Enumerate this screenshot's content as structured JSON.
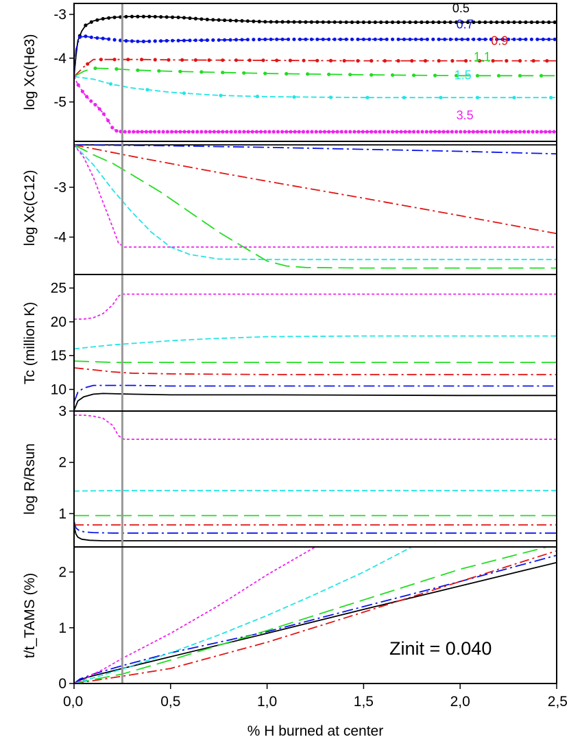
{
  "chart_data": {
    "type": "line",
    "xlabel": "% H burned at center",
    "xlim": [
      0,
      2.5
    ],
    "x_ticks": [
      "0,0",
      "0,5",
      "1,0",
      "1,5",
      "2,0",
      "2,5"
    ],
    "x_tick_values": [
      0,
      0.5,
      1,
      1.5,
      2,
      2.5
    ],
    "vertical_line_x": 0.25,
    "annotation": "Zinit = 0.040",
    "masses": [
      "0.5",
      "0.7",
      "0.9",
      "1.1",
      "1.5",
      "3.5"
    ],
    "colors": {
      "0.5": "#000000",
      "0.7": "#0a14e6",
      "0.9": "#e11414",
      "1.1": "#22dd22",
      "1.5": "#22e5e5",
      "3.5": "#ee22ee",
      "refline": "#999999"
    },
    "dash": {
      "0.5": "",
      "0.7": "16 5 3 5",
      "0.9": "14 5 3 5",
      "1.1": "22 9",
      "1.5": "8 4",
      "3.5": "4 3"
    },
    "panels": [
      {
        "id": "he3",
        "ylabel": "log Xc(He3)",
        "ylim": [
          -5.9,
          -2.75
        ],
        "y_ticks": [
          -3,
          -4,
          -5
        ],
        "y_tick_labels": [
          "-3",
          "-4",
          "-5"
        ],
        "series_labels": [
          {
            "mass": "0.5",
            "text": "0.5"
          },
          {
            "mass": "0.7",
            "text": "0.7"
          },
          {
            "mass": "0.9",
            "text": "0.9"
          },
          {
            "mass": "1.1",
            "text": "1.1"
          },
          {
            "mass": "1.5",
            "text": "1.5"
          },
          {
            "mass": "3.5",
            "text": "3.5"
          }
        ],
        "label_positions": {
          "0.5": [
            1.96,
            -2.95
          ],
          "0.7": [
            1.98,
            -3.32
          ],
          "0.9": [
            2.16,
            -3.7
          ],
          "1.1": [
            2.07,
            -4.07
          ],
          "1.5": [
            1.97,
            -4.48
          ],
          "3.5": [
            1.98,
            -5.4
          ]
        },
        "series": [
          {
            "mass": "0.5",
            "markers": 0.03,
            "x": [
              0,
              0.01,
              0.02,
              0.04,
              0.06,
              0.1,
              0.15,
              0.2,
              0.28,
              0.4,
              0.55,
              0.7,
              1.0,
              1.5,
              2.0,
              2.5
            ],
            "y": [
              -4.42,
              -3.95,
              -3.6,
              -3.38,
              -3.25,
              -3.15,
              -3.1,
              -3.07,
              -3.05,
              -3.05,
              -3.07,
              -3.12,
              -3.17,
              -3.18,
              -3.18,
              -3.18
            ]
          },
          {
            "mass": "0.7",
            "markers": 0.03,
            "x": [
              0,
              0.01,
              0.03,
              0.06,
              0.1,
              0.15,
              0.25,
              0.35,
              0.5,
              1.0,
              1.5,
              2.0,
              2.5
            ],
            "y": [
              -4.42,
              -3.8,
              -3.52,
              -3.5,
              -3.53,
              -3.55,
              -3.6,
              -3.62,
              -3.6,
              -3.57,
              -3.57,
              -3.57,
              -3.57
            ]
          },
          {
            "mass": "0.9",
            "markers": 0.07,
            "x": [
              0,
              0.05,
              0.1,
              0.2,
              0.35,
              0.5,
              1.0,
              1.5,
              2.0,
              2.5
            ],
            "y": [
              -4.42,
              -4.2,
              -4.03,
              -4.03,
              -4.03,
              -4.04,
              -4.05,
              -4.06,
              -4.06,
              -4.06
            ]
          },
          {
            "mass": "1.1",
            "markers": 0.11,
            "x": [
              0,
              0.05,
              0.1,
              0.2,
              0.3,
              0.5,
              1.0,
              1.5,
              2.0,
              2.5
            ],
            "y": [
              -4.42,
              -4.3,
              -4.23,
              -4.24,
              -4.27,
              -4.3,
              -4.35,
              -4.38,
              -4.4,
              -4.4
            ]
          },
          {
            "mass": "1.5",
            "markers": 0.19,
            "x": [
              0,
              0.1,
              0.2,
              0.3,
              0.5,
              0.75,
              1.0,
              1.5,
              2.0,
              2.5
            ],
            "y": [
              -4.42,
              -4.48,
              -4.6,
              -4.68,
              -4.78,
              -4.85,
              -4.88,
              -4.9,
              -4.9,
              -4.9
            ]
          },
          {
            "mass": "3.5",
            "markers": 0.022,
            "x": [
              0,
              0.02,
              0.05,
              0.08,
              0.12,
              0.15,
              0.18,
              0.2,
              0.22,
              0.25,
              0.28,
              0.5,
              1.0,
              2.5
            ],
            "y": [
              -4.42,
              -4.6,
              -4.8,
              -4.95,
              -5.1,
              -5.25,
              -5.45,
              -5.6,
              -5.66,
              -5.68,
              -5.68,
              -5.68,
              -5.68,
              -5.68
            ]
          }
        ]
      },
      {
        "id": "c12",
        "ylabel": "log Xc(C12)",
        "ylim": [
          -4.75,
          -2.08
        ],
        "y_ticks": [
          -3,
          -4
        ],
        "y_tick_labels": [
          "-3",
          "-4"
        ],
        "series": [
          {
            "mass": "0.5",
            "x": [
              0,
              0.5,
              1.0,
              1.5,
              2.0,
              2.5
            ],
            "y": [
              -2.15,
              -2.15,
              -2.15,
              -2.15,
              -2.15,
              -2.15
            ]
          },
          {
            "mass": "0.7",
            "x": [
              0,
              0.5,
              1.0,
              1.5,
              2.0,
              2.5
            ],
            "y": [
              -2.15,
              -2.17,
              -2.2,
              -2.24,
              -2.28,
              -2.33
            ]
          },
          {
            "mass": "0.9",
            "x": [
              0,
              0.3,
              0.7,
              1.0,
              1.5,
              2.0,
              2.5
            ],
            "y": [
              -2.15,
              -2.38,
              -2.67,
              -2.88,
              -3.22,
              -3.57,
              -3.93
            ]
          },
          {
            "mass": "1.1",
            "x": [
              0,
              0.1,
              0.2,
              0.3,
              0.45,
              0.6,
              0.75,
              0.9,
              1.0,
              1.1,
              1.2,
              1.5,
              2.0,
              2.5
            ],
            "y": [
              -2.15,
              -2.35,
              -2.52,
              -2.75,
              -3.1,
              -3.5,
              -3.9,
              -4.25,
              -4.48,
              -4.58,
              -4.61,
              -4.62,
              -4.62,
              -4.62
            ]
          },
          {
            "mass": "1.5",
            "x": [
              0,
              0.1,
              0.2,
              0.3,
              0.4,
              0.5,
              0.6,
              0.75,
              1.0,
              2.5
            ],
            "y": [
              -2.15,
              -2.55,
              -3.05,
              -3.5,
              -3.9,
              -4.2,
              -4.35,
              -4.44,
              -4.45,
              -4.45
            ]
          },
          {
            "mass": "3.5",
            "x": [
              0,
              0.05,
              0.1,
              0.15,
              0.2,
              0.23,
              0.26,
              0.3,
              0.5,
              2.5
            ],
            "y": [
              -2.15,
              -2.4,
              -2.8,
              -3.3,
              -3.8,
              -4.12,
              -4.2,
              -4.2,
              -4.2,
              -4.2
            ]
          }
        ]
      },
      {
        "id": "tc",
        "ylabel": "Tc (million K)",
        "ylim": [
          6.8,
          27.0
        ],
        "y_ticks": [
          10,
          15,
          20,
          25
        ],
        "y_tick_labels": [
          "10",
          "15",
          "20",
          "25"
        ],
        "series": [
          {
            "mass": "0.5",
            "x": [
              0,
              0.02,
              0.05,
              0.1,
              0.15,
              0.3,
              0.5,
              1.0,
              2.0,
              2.5
            ],
            "y": [
              6.9,
              8.3,
              8.9,
              9.3,
              9.4,
              9.3,
              9.2,
              9.2,
              9.1,
              9.1
            ]
          },
          {
            "mass": "0.7",
            "x": [
              0,
              0.02,
              0.05,
              0.1,
              0.15,
              0.3,
              0.5,
              1.0,
              2.0,
              2.5
            ],
            "y": [
              8.1,
              9.6,
              10.2,
              10.6,
              10.6,
              10.6,
              10.5,
              10.5,
              10.5,
              10.5
            ]
          },
          {
            "mass": "0.9",
            "x": [
              0,
              0.1,
              0.2,
              0.3,
              0.5,
              1.0,
              2.0,
              2.5
            ],
            "y": [
              13.2,
              12.9,
              12.6,
              12.4,
              12.3,
              12.2,
              12.2,
              12.2
            ]
          },
          {
            "mass": "1.1",
            "x": [
              0,
              0.1,
              0.2,
              0.3,
              0.5,
              1.0,
              2.0,
              2.5
            ],
            "y": [
              14.2,
              14.1,
              14.0,
              14.0,
              14.0,
              14.0,
              14.0,
              14.0
            ]
          },
          {
            "mass": "1.5",
            "x": [
              0,
              0.1,
              0.2,
              0.3,
              0.5,
              0.7,
              1.0,
              1.5,
              2.0,
              2.5
            ],
            "y": [
              16.0,
              16.3,
              16.6,
              16.8,
              17.2,
              17.5,
              17.8,
              17.9,
              17.9,
              17.9
            ]
          },
          {
            "mass": "3.5",
            "x": [
              0,
              0.05,
              0.1,
              0.15,
              0.2,
              0.23,
              0.25,
              0.28,
              0.5,
              1.0,
              2.5
            ],
            "y": [
              20.4,
              20.4,
              20.6,
              21.2,
              22.5,
              23.8,
              24.1,
              24.1,
              24.1,
              24.1,
              24.1
            ]
          }
        ]
      },
      {
        "id": "r",
        "ylabel": "log R/Rsun",
        "ylim": [
          0.35,
          3.0
        ],
        "y_ticks": [
          1,
          2,
          3
        ],
        "y_tick_labels": [
          "1",
          "2",
          "3"
        ],
        "series": [
          {
            "mass": "0.5",
            "x": [
              0,
              0.01,
              0.02,
              0.04,
              0.08,
              0.15,
              0.3,
              1.0,
              2.5
            ],
            "y": [
              0.75,
              0.6,
              0.54,
              0.5,
              0.48,
              0.47,
              0.47,
              0.47,
              0.47
            ]
          },
          {
            "mass": "0.7",
            "x": [
              0,
              0.01,
              0.03,
              0.06,
              0.1,
              0.2,
              0.3,
              1.0,
              2.5
            ],
            "y": [
              0.85,
              0.72,
              0.66,
              0.64,
              0.63,
              0.62,
              0.62,
              0.62,
              0.62
            ]
          },
          {
            "mass": "0.9",
            "x": [
              0,
              0.1,
              0.25,
              0.5,
              1.0,
              2.0,
              2.5
            ],
            "y": [
              0.78,
              0.78,
              0.78,
              0.78,
              0.78,
              0.78,
              0.78
            ]
          },
          {
            "mass": "1.1",
            "x": [
              0,
              0.25,
              0.5,
              1.0,
              2.0,
              2.5
            ],
            "y": [
              0.96,
              0.96,
              0.96,
              0.96,
              0.96,
              0.96
            ]
          },
          {
            "mass": "1.5",
            "x": [
              0,
              0.25,
              0.5,
              1.0,
              2.0,
              2.5
            ],
            "y": [
              1.44,
              1.45,
              1.45,
              1.45,
              1.45,
              1.45
            ]
          },
          {
            "mass": "3.5",
            "x": [
              0,
              0.05,
              0.1,
              0.15,
              0.2,
              0.23,
              0.26,
              0.5,
              1.0,
              2.5
            ],
            "y": [
              2.92,
              2.92,
              2.9,
              2.86,
              2.72,
              2.52,
              2.45,
              2.45,
              2.45,
              2.45
            ]
          }
        ]
      },
      {
        "id": "t",
        "ylabel": "t/t_TAMS (%)",
        "ylim": [
          0,
          2.45
        ],
        "y_ticks": [
          0,
          1,
          2
        ],
        "y_tick_labels": [
          "0",
          "1",
          "2"
        ],
        "series": [
          {
            "mass": "0.5",
            "x": [
              0,
              0.03,
              0.06,
              0.1,
              0.25,
              0.5,
              1.0,
              1.5,
              2.0,
              2.5
            ],
            "y": [
              0,
              0.06,
              0.1,
              0.14,
              0.27,
              0.48,
              0.9,
              1.33,
              1.75,
              2.17
            ]
          },
          {
            "mass": "0.7",
            "x": [
              0,
              0.03,
              0.1,
              0.25,
              0.5,
              1.0,
              1.5,
              2.0,
              2.5
            ],
            "y": [
              0,
              0.08,
              0.17,
              0.32,
              0.55,
              0.93,
              1.38,
              1.83,
              2.3
            ]
          },
          {
            "mass": "0.9",
            "x": [
              0,
              0.1,
              0.25,
              0.5,
              1.0,
              1.5,
              2.0,
              2.5
            ],
            "y": [
              0,
              0.05,
              0.13,
              0.27,
              0.74,
              1.28,
              1.83,
              2.38
            ]
          },
          {
            "mass": "1.1",
            "x": [
              0,
              0.1,
              0.25,
              0.5,
              1.0,
              1.5,
              2.0,
              2.45
            ],
            "y": [
              0,
              0.07,
              0.17,
              0.42,
              0.95,
              1.5,
              2.05,
              2.45
            ]
          },
          {
            "mass": "1.5",
            "x": [
              0,
              0.1,
              0.25,
              0.5,
              0.75,
              1.0,
              1.25,
              1.5,
              1.75
            ],
            "y": [
              0,
              0.1,
              0.26,
              0.55,
              0.87,
              1.22,
              1.6,
              2.0,
              2.45
            ]
          },
          {
            "mass": "3.5",
            "x": [
              0,
              0.05,
              0.1,
              0.15,
              0.25,
              0.5,
              0.75,
              1.0,
              1.25
            ],
            "y": [
              0,
              0.07,
              0.17,
              0.25,
              0.45,
              0.9,
              1.4,
              1.95,
              2.45
            ]
          }
        ]
      }
    ]
  }
}
